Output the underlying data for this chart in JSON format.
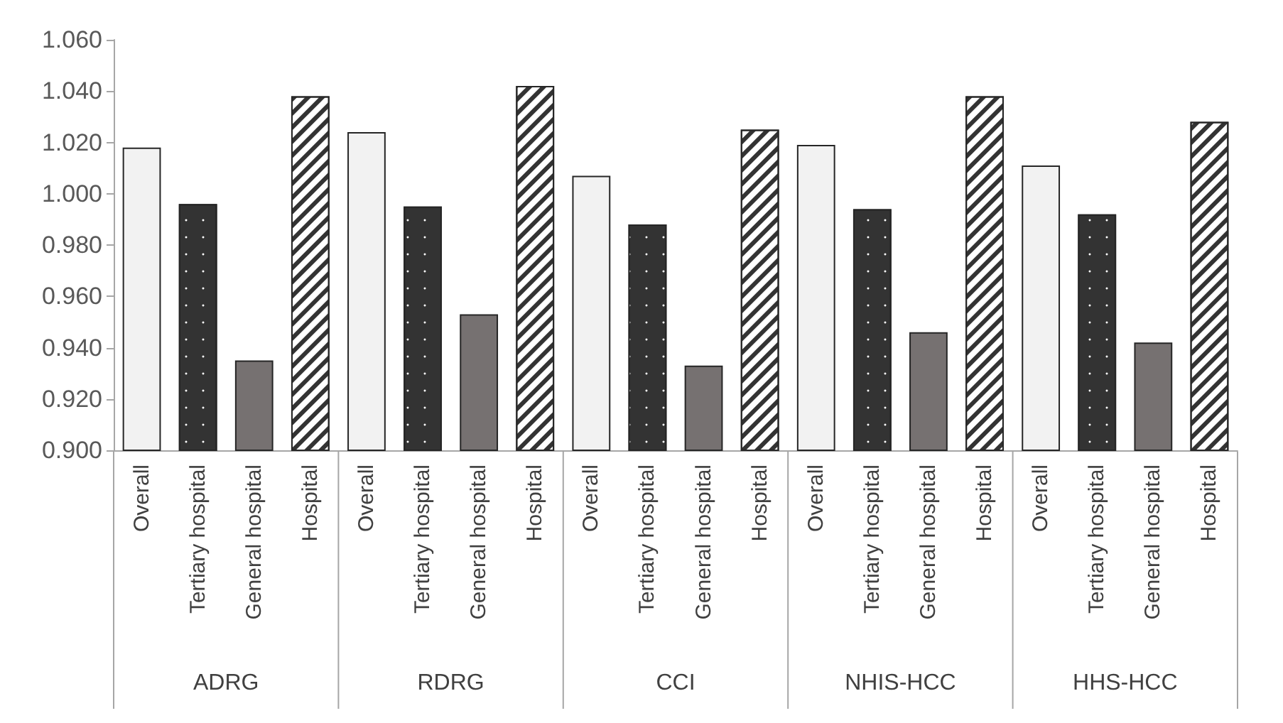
{
  "chart_data": {
    "type": "bar",
    "categories": [
      "Overall",
      "Tertiary hospital",
      "General hospital",
      "Hospital",
      "Overall",
      "Tertiary hospital",
      "General hospital",
      "Hospital",
      "Overall",
      "Tertiary hospital",
      "General hospital",
      "Hospital",
      "Overall",
      "Tertiary hospital",
      "General hospital",
      "Hospital",
      "Overall",
      "Tertiary hospital",
      "General hospital",
      "Hospital"
    ],
    "values": [
      1.018,
      0.996,
      0.935,
      1.038,
      1.024,
      0.995,
      0.953,
      1.042,
      1.007,
      0.988,
      0.933,
      1.025,
      1.019,
      0.994,
      0.946,
      1.038,
      1.011,
      0.992,
      0.942,
      1.028
    ],
    "colors": [
      "#f2f2f2",
      "#333333",
      "#767171",
      "#ffffff",
      "#f2f2f2",
      "#333333",
      "#767171",
      "#ffffff",
      "#f2f2f2",
      "#333333",
      "#767171",
      "#ffffff",
      "#f2f2f2",
      "#333333",
      "#767171",
      "#ffffff",
      "#f2f2f2",
      "#333333",
      "#767171",
      "#ffffff"
    ],
    "annotations": [
      "ADRG",
      "RDRG",
      "CCI",
      "NHIS-HCC",
      "HHS-HCC"
    ],
    "ylim": [
      0.9,
      1.06
    ],
    "yticks": [
      {
        "value": 0.9,
        "label": "0.900"
      },
      {
        "value": 0.92,
        "label": "0.920"
      },
      {
        "value": 0.94,
        "label": "0.940"
      },
      {
        "value": 0.96,
        "label": "0.960"
      },
      {
        "value": 0.98,
        "label": "0.980"
      },
      {
        "value": 1.0,
        "label": "1.000"
      },
      {
        "value": 1.02,
        "label": "1.020"
      },
      {
        "value": 1.04,
        "label": "1.040"
      },
      {
        "value": 1.06,
        "label": "1.060"
      }
    ],
    "grid": false
  }
}
